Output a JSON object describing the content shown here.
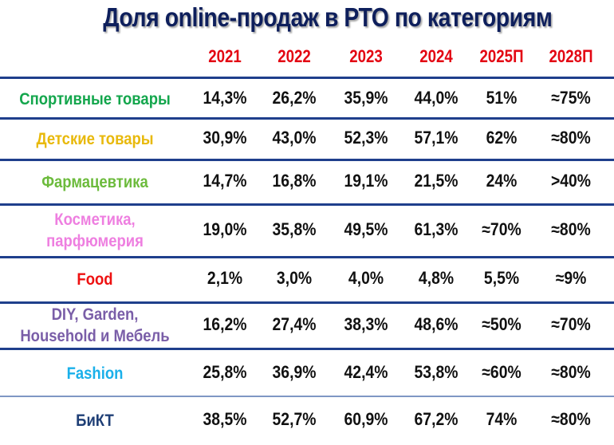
{
  "title": "Доля online-продаж в РТО по категориям",
  "columns": [
    "2021",
    "2022",
    "2023",
    "2024",
    "2025П",
    "2028П"
  ],
  "rows": [
    {
      "category": "Спортивные товары",
      "lines": [
        "Спортивные товары"
      ],
      "color": "#13a64c",
      "values": [
        "14,3%",
        "26,2%",
        "35,9%",
        "44,0%",
        "51%",
        "≈75%"
      ]
    },
    {
      "category": "Детские товары",
      "lines": [
        "Детские товары"
      ],
      "color": "#e8b90c",
      "values": [
        "30,9%",
        "43,0%",
        "52,3%",
        "57,1%",
        "62%",
        "≈80%"
      ]
    },
    {
      "category": "Фармацевтика",
      "lines": [
        "Фармацевтика"
      ],
      "color": "#6cbb3c",
      "values": [
        "14,7%",
        "16,8%",
        "19,1%",
        "21,5%",
        "24%",
        ">40%"
      ]
    },
    {
      "category": "Косметика, парфюмерия",
      "lines": [
        "Косметика,",
        "парфюмерия"
      ],
      "color": "#ee7fe0",
      "values": [
        "19,0%",
        "35,8%",
        "49,5%",
        "61,3%",
        "≈70%",
        "≈80%"
      ]
    },
    {
      "category": "Food",
      "lines": [
        "Food"
      ],
      "color": "#ee1111",
      "values": [
        "2,1%",
        "3,0%",
        "4,0%",
        "4,8%",
        "5,5%",
        "≈9%"
      ]
    },
    {
      "category": "DIY, Garden, Household и Мебель",
      "lines": [
        "DIY, Garden,",
        "Household и Мебель"
      ],
      "color": "#7a5ea8",
      "values": [
        "16,2%",
        "27,4%",
        "38,3%",
        "48,6%",
        "≈50%",
        "≈70%"
      ]
    },
    {
      "category": "Fashion",
      "lines": [
        "Fashion"
      ],
      "color": "#1ab0ea",
      "values": [
        "25,8%",
        "36,9%",
        "42,4%",
        "53,8%",
        "≈60%",
        "≈80%"
      ]
    },
    {
      "category": "БиКТ",
      "lines": [
        "БиКТ"
      ],
      "color": "#1f3f76",
      "values": [
        "38,5%",
        "52,7%",
        "60,9%",
        "67,2%",
        "74%",
        "≈80%"
      ]
    }
  ],
  "colors": {
    "title": "#0e1f5c",
    "years": "#e30613",
    "divider": "#1f3f8c",
    "values": "#111111"
  },
  "chart_data": {
    "type": "table",
    "title": "Доля online-продаж в РТО по категориям",
    "columns": [
      "2021",
      "2022",
      "2023",
      "2024",
      "2025П",
      "2028П"
    ],
    "categories": [
      "Спортивные товары",
      "Детские товары",
      "Фармацевтика",
      "Косметика, парфюмерия",
      "Food",
      "DIY, Garden, Household и Мебель",
      "Fashion",
      "БиКТ"
    ],
    "series": [
      {
        "name": "Спортивные товары",
        "values": [
          "14,3%",
          "26,2%",
          "35,9%",
          "44,0%",
          "51%",
          "≈75%"
        ]
      },
      {
        "name": "Детские товары",
        "values": [
          "30,9%",
          "43,0%",
          "52,3%",
          "57,1%",
          "62%",
          "≈80%"
        ]
      },
      {
        "name": "Фармацевтика",
        "values": [
          "14,7%",
          "16,8%",
          "19,1%",
          "21,5%",
          "24%",
          ">40%"
        ]
      },
      {
        "name": "Косметика, парфюмерия",
        "values": [
          "19,0%",
          "35,8%",
          "49,5%",
          "61,3%",
          "≈70%",
          "≈80%"
        ]
      },
      {
        "name": "Food",
        "values": [
          "2,1%",
          "3,0%",
          "4,0%",
          "4,8%",
          "5,5%",
          "≈9%"
        ]
      },
      {
        "name": "DIY, Garden, Household и Мебель",
        "values": [
          "16,2%",
          "27,4%",
          "38,3%",
          "48,6%",
          "≈50%",
          "≈70%"
        ]
      },
      {
        "name": "Fashion",
        "values": [
          "25,8%",
          "36,9%",
          "42,4%",
          "53,8%",
          "≈60%",
          "≈80%"
        ]
      },
      {
        "name": "БиКТ",
        "values": [
          "38,5%",
          "52,7%",
          "60,9%",
          "67,2%",
          "74%",
          "≈80%"
        ]
      }
    ]
  }
}
